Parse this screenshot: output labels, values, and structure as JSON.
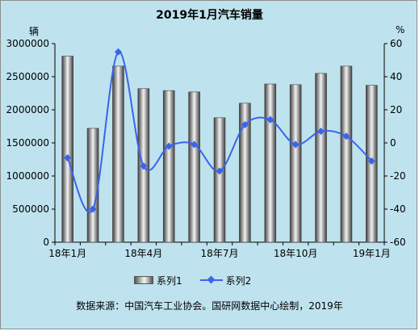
{
  "chart_data": {
    "type": "bar+line",
    "title": "2019年1月汽车销量",
    "left_axis_unit": "辆",
    "right_axis_unit": "%",
    "x_tick_labels": [
      "18年1月",
      "18年4月",
      "18年7月",
      "18年10月",
      "19年1月"
    ],
    "y_left": {
      "ylim": [
        0,
        3000000
      ],
      "ticks": [
        "0",
        "500000",
        "1000000",
        "1500000",
        "2000000",
        "2500000",
        "3000000"
      ]
    },
    "y_right": {
      "ylim": [
        -60,
        60
      ],
      "ticks": [
        "-60",
        "-40",
        "-20",
        "0",
        "20",
        "40",
        "60"
      ]
    },
    "series": [
      {
        "name": "系列1",
        "axis": "left",
        "values": [
          2810000,
          1720000,
          2660000,
          2320000,
          2290000,
          2270000,
          1880000,
          2100000,
          2390000,
          2380000,
          2550000,
          2660000,
          2370000
        ]
      },
      {
        "name": "系列2",
        "axis": "right",
        "values": [
          -9,
          -40,
          55,
          -14,
          -2,
          -1,
          -17,
          11,
          14,
          -1,
          7,
          4,
          -11
        ]
      }
    ],
    "grid": false,
    "legend": "bottom"
  },
  "colors": {
    "background": "#bfe3ee",
    "line": "#3a64ea"
  },
  "legend": {
    "series1": "系列1",
    "series2": "系列2"
  },
  "source_note": "数据来源：中国汽车工业协会。国研网数据中心绘制，2019年"
}
